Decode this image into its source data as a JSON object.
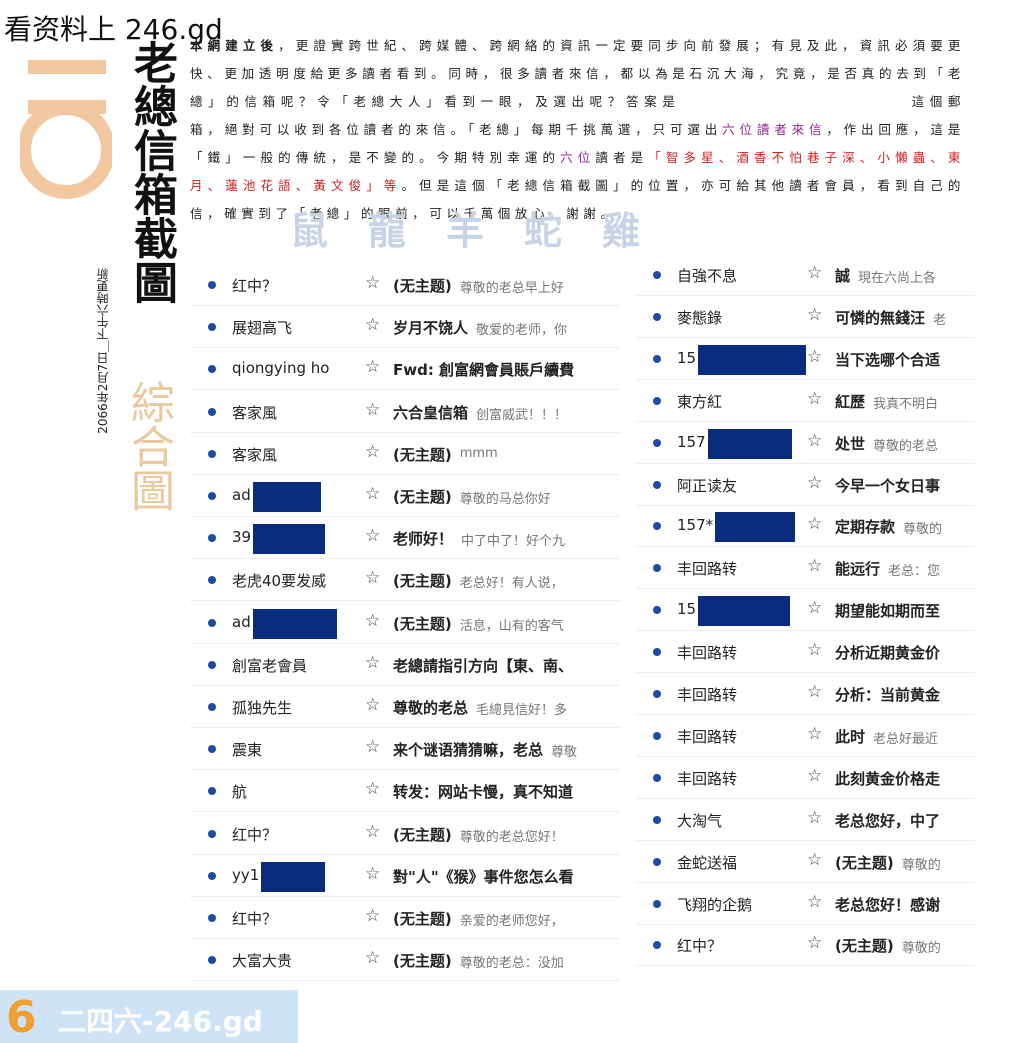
{
  "watermark": "看资料上 246.gd",
  "logo_number": "016",
  "title": "老總信箱截圖",
  "subtitle": "綜合圖",
  "date": "2066年2月7日＿下午六時更新",
  "intro": [
    "本網建立後",
    "，更證實跨世紀、跨媒體、跨網絡的資訊一定要同步向前發展；有見及此，資訊必須要更快、更加透明度給更多讀者看到。同時，很多讀者來信，都以為是石沉大海，究竟，是否真的去到「老總」的信箱呢？令「老總大人」看到一眼，及選出呢？答案是",
    "這個郵箱，絕對可以收到各位讀者的來信。「老總」每期千挑萬選，只可選出",
    "六位讀者來信",
    "，作出回應，這是「鐵」一般的傳統，是不變的。今期特別幸運的",
    "六位",
    "讀者是",
    "「智多星、酒香不怕巷子深、小懶蟲、東月、蓮池花語、黃文俊」等",
    "。但是這個「老總信箱截圖」的位置，亦可給其他讀者會員，看到自己的信，確實到了「老總」的眼前，可以千萬個放心。謝謝。"
  ],
  "zodiac": "鼠龍羊蛇雞",
  "left_list": [
    {
      "sender": "红中？",
      "subject": "(无主题)",
      "preview": "尊敬的老总早上好"
    },
    {
      "sender": "展翅高飞",
      "subject": "岁月不饶人",
      "preview": "敬爱的老师，你"
    },
    {
      "sender": "qiongying ho",
      "subject": "Fwd: 創富網會員賬戶續費"
    },
    {
      "sender": "客家風",
      "subject": "六合皇信箱",
      "preview": "创富威武！！！"
    },
    {
      "sender": "客家風",
      "subject": "(无主题)",
      "preview": "mmm"
    },
    {
      "sender": "ad",
      "subject": "(无主题)",
      "preview": "尊敬的马总你好"
    },
    {
      "sender": "39",
      "subject": "老师好！",
      "preview": "中了中了！好个九"
    },
    {
      "sender": "老虎40要发威",
      "subject": "(无主题)",
      "preview": "老总好！有人说，"
    },
    {
      "sender": "ad",
      "subject": "(无主题)",
      "preview": "活息，山有的客气"
    },
    {
      "sender": "創富老會員",
      "subject": "老總請指引方向【東、南、"
    },
    {
      "sender": "孤独先生",
      "subject": "尊敬的老总",
      "preview": "毛總見信好！多"
    },
    {
      "sender": "震東",
      "subject": "来个谜语猜猜嘛，老总",
      "preview": "尊敬"
    },
    {
      "sender": "航",
      "subject": "转发：网站卡慢，真不知道"
    },
    {
      "sender": "红中？",
      "subject": "(无主题)",
      "preview": "尊敬的老总您好！"
    },
    {
      "sender": "yy1",
      "subject": "對\"人\"《猴》事件您怎么看"
    },
    {
      "sender": "红中？",
      "subject": "(无主题)",
      "preview": "亲爱的老师您好，"
    },
    {
      "sender": "大富大贵",
      "subject": "(无主题)",
      "preview": "尊敬的老总：没加"
    }
  ],
  "right_list": [
    {
      "sender": "自強不息",
      "subject": "誠",
      "preview": "現在六尚上各"
    },
    {
      "sender": "麥態錄",
      "subject": "可憐的無錢汪",
      "preview": "老"
    },
    {
      "sender": "15",
      "subject": "当下选哪个合适"
    },
    {
      "sender": "東方紅",
      "subject": "紅歷",
      "preview": "我真不明白"
    },
    {
      "sender": "157",
      "subject": "处世",
      "preview": "尊敬的老总"
    },
    {
      "sender": "阿正读友",
      "subject": "今早一个女日事"
    },
    {
      "sender": "157*",
      "subject": "定期存款",
      "preview": "尊敬的"
    },
    {
      "sender": "丰回路转",
      "subject": "能远行",
      "preview": "老总：您"
    },
    {
      "sender": "15",
      "subject": "期望能如期而至"
    },
    {
      "sender": "丰回路转",
      "subject": "分析近期黄金价"
    },
    {
      "sender": "丰回路转",
      "subject": "分析：当前黄金"
    },
    {
      "sender": "丰回路转",
      "subject": "此时",
      "preview": "老总好最近"
    },
    {
      "sender": "丰回路转",
      "subject": "此刻黄金价格走"
    },
    {
      "sender": "大淘气",
      "subject": "老总您好，中了"
    },
    {
      "sender": "金蛇送福",
      "subject": "(无主题)",
      "preview": "尊敬的"
    },
    {
      "sender": "飞翔的企鹅",
      "subject": "老总您好！感谢"
    },
    {
      "sender": "红中？",
      "subject": "(无主题)",
      "preview": "尊敬的"
    }
  ],
  "bottom_logo": {
    "digit": "6",
    "text": "二四六-246.gd"
  }
}
